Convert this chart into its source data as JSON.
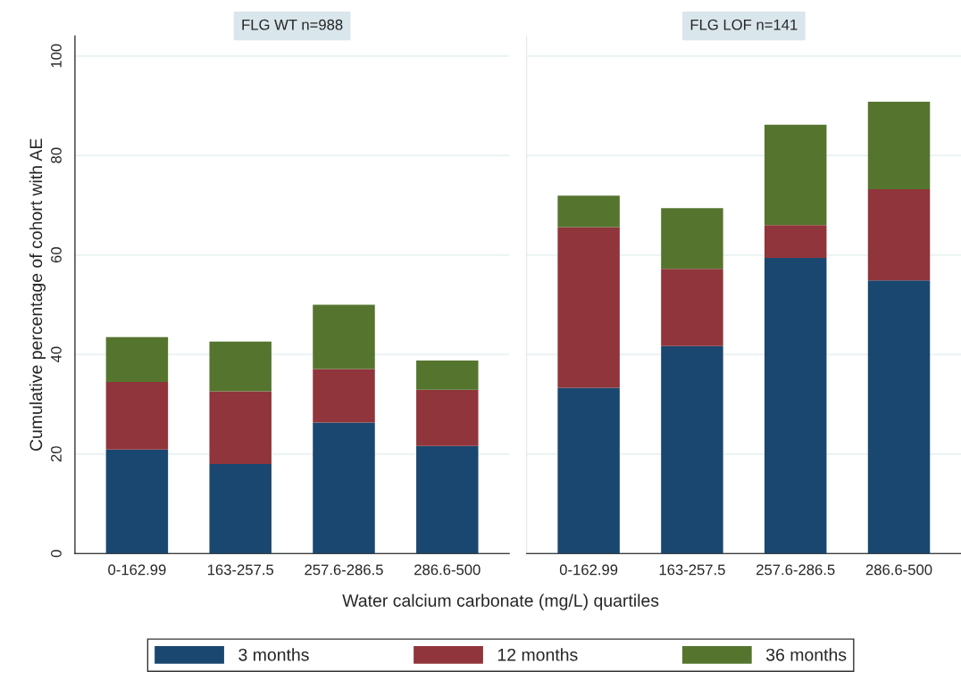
{
  "chart_data": [
    {
      "type": "bar",
      "title": "FLG WT n=988",
      "ylabel": "Cumulative percentage of cohort with AE",
      "xlabel": "Water calcium carbonate (mg/L) quartiles",
      "stacked": true,
      "categories": [
        "0-162.99",
        "163-257.5",
        "257.6-286.5",
        "286.6-500"
      ],
      "ylim": [
        0,
        104
      ],
      "yticks": [
        0,
        20,
        40,
        60,
        80,
        100
      ],
      "grid": "y",
      "legend": "bottom",
      "series": [
        {
          "name": "3 months",
          "color": "#1a476f",
          "values": [
            20.9,
            18.0,
            26.3,
            21.6
          ]
        },
        {
          "name": "12 months",
          "color": "#90353b",
          "values": [
            13.6,
            14.6,
            10.8,
            11.3
          ]
        },
        {
          "name": "36 months",
          "color": "#55752f",
          "values": [
            9.0,
            10.0,
            12.9,
            5.9
          ]
        }
      ]
    },
    {
      "type": "bar",
      "title": "FLG LOF n=141",
      "stacked": true,
      "categories": [
        "0-162.99",
        "163-257.5",
        "257.6-286.5",
        "286.6-500"
      ],
      "ylim": [
        0,
        104
      ],
      "yticks": [
        0,
        20,
        40,
        60,
        80,
        100
      ],
      "grid": "y",
      "tick_labels": "x",
      "series": [
        {
          "color": "#1a476f",
          "values": [
            33.3,
            41.7,
            59.4,
            54.9
          ]
        },
        {
          "color": "#90353b",
          "values": [
            32.3,
            15.5,
            6.6,
            18.3
          ]
        },
        {
          "color": "#55752f",
          "values": [
            6.3,
            12.2,
            20.2,
            17.6
          ]
        }
      ]
    }
  ]
}
